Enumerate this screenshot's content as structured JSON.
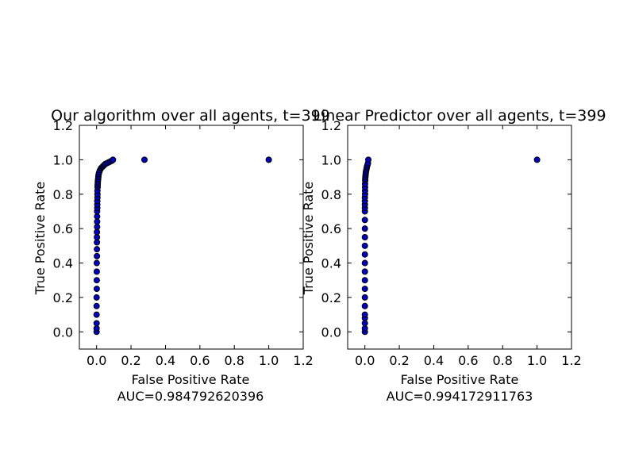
{
  "chart_data": [
    {
      "type": "scatter",
      "title": "Our algorithm over all agents, t=399",
      "xlabel": "False Positive Rate",
      "auc_label": "AUC=0.984792620396",
      "ylabel": "True Positive Rate",
      "xlim": [
        -0.1,
        1.2
      ],
      "ylim": [
        -0.1,
        1.2
      ],
      "xticks": [
        "0.0",
        "0.2",
        "0.4",
        "0.6",
        "0.8",
        "1.0",
        "1.2"
      ],
      "yticks": [
        "0.0",
        "0.2",
        "0.4",
        "0.6",
        "0.8",
        "1.0",
        "1.2"
      ],
      "marker_color": "#0000bf",
      "series": [
        {
          "x": [
            0.0,
            0.0,
            0.0,
            0.0,
            0.0,
            0.0,
            0.001,
            0.001,
            0.001,
            0.001,
            0.002,
            0.002,
            0.002,
            0.002,
            0.002,
            0.003,
            0.003,
            0.003,
            0.003,
            0.004,
            0.004,
            0.004,
            0.005,
            0.005,
            0.005,
            0.006,
            0.006,
            0.007,
            0.007,
            0.008,
            0.009,
            0.01,
            0.011,
            0.013,
            0.016,
            0.02,
            0.025,
            0.03,
            0.035,
            0.04,
            0.045,
            0.05,
            0.06,
            0.07,
            0.08,
            0.09,
            0.095,
            0.278,
            1.0
          ],
          "y": [
            0.0,
            0.02,
            0.05,
            0.1,
            0.15,
            0.2,
            0.25,
            0.3,
            0.35,
            0.4,
            0.44,
            0.48,
            0.52,
            0.55,
            0.58,
            0.61,
            0.64,
            0.67,
            0.7,
            0.72,
            0.74,
            0.76,
            0.78,
            0.8,
            0.82,
            0.84,
            0.85,
            0.86,
            0.87,
            0.88,
            0.89,
            0.9,
            0.91,
            0.92,
            0.93,
            0.94,
            0.95,
            0.955,
            0.96,
            0.965,
            0.97,
            0.975,
            0.98,
            0.985,
            0.99,
            0.995,
            1.0,
            1.0,
            1.0
          ]
        }
      ]
    },
    {
      "type": "scatter",
      "title": "Linear Predictor over all agents, t=399",
      "xlabel": "False Positive Rate",
      "auc_label": "AUC=0.994172911763",
      "ylabel": "True Positive Rate",
      "xlim": [
        -0.1,
        1.2
      ],
      "ylim": [
        -0.1,
        1.2
      ],
      "xticks": [
        "0.0",
        "0.2",
        "0.4",
        "0.6",
        "0.8",
        "1.0",
        "1.2"
      ],
      "yticks": [
        "0.0",
        "0.2",
        "0.4",
        "0.6",
        "0.8",
        "1.0",
        "1.2"
      ],
      "marker_color": "#0000bf",
      "series": [
        {
          "x": [
            0.0,
            0.0,
            0.0,
            0.0,
            0.0,
            0.0,
            0.0,
            0.0,
            0.0,
            0.0,
            0.0,
            0.0,
            0.0,
            0.0,
            0.0,
            0.0,
            0.0,
            0.0,
            0.0,
            0.0,
            0.0,
            0.001,
            0.001,
            0.001,
            0.001,
            0.002,
            0.002,
            0.003,
            0.004,
            0.005,
            0.006,
            0.008,
            0.01,
            0.012,
            0.015,
            0.018,
            0.02,
            1.0
          ],
          "y": [
            0.0,
            0.02,
            0.05,
            0.08,
            0.1,
            0.15,
            0.2,
            0.25,
            0.3,
            0.35,
            0.4,
            0.45,
            0.5,
            0.55,
            0.6,
            0.65,
            0.7,
            0.72,
            0.74,
            0.76,
            0.78,
            0.8,
            0.82,
            0.84,
            0.86,
            0.88,
            0.89,
            0.9,
            0.91,
            0.92,
            0.93,
            0.94,
            0.95,
            0.96,
            0.97,
            0.98,
            1.0,
            1.0
          ]
        }
      ]
    }
  ]
}
